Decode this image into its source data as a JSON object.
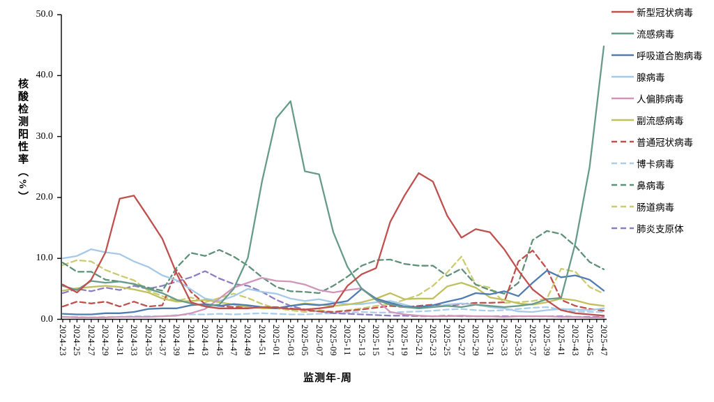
{
  "figure": {
    "y_axis": {
      "title": "核酸检测阳性率（%）",
      "tick_labels": [
        "0.0",
        "10.0",
        "20.0",
        "30.0",
        "40.0",
        "50.0"
      ]
    },
    "x_axis": {
      "title": "监测年-周"
    }
  },
  "chart_data": {
    "type": "line",
    "title": "",
    "xlabel": "监测年-周",
    "ylabel": "核酸检测阳性率（%）",
    "ylim": [
      0,
      50
    ],
    "y_ticks": [
      0,
      10,
      20,
      30,
      40,
      50
    ],
    "grid": false,
    "legend_position": "right",
    "categories": [
      "2024-23",
      "2024-25",
      "2024-27",
      "2024-29",
      "2024-31",
      "2024-33",
      "2024-35",
      "2024-37",
      "2024-39",
      "2024-41",
      "2024-43",
      "2024-45",
      "2024-47",
      "2024-49",
      "2024-51",
      "2025-01",
      "2025-03",
      "2025-05",
      "2025-07",
      "2025-09",
      "2025-11",
      "2025-13",
      "2025-15",
      "2025-17",
      "2025-19",
      "2025-21",
      "2025-23",
      "2025-25",
      "2025-27",
      "2025-29",
      "2025-31",
      "2025-33",
      "2025-35",
      "2025-37",
      "2025-39",
      "2025-41",
      "2025-43",
      "2025-45",
      "2025-47"
    ],
    "series": [
      {
        "name": "新型冠状病毒",
        "color": "#c0504d",
        "dash": false,
        "values": [
          5.7,
          4.4,
          6.5,
          11.0,
          19.8,
          20.3,
          16.8,
          13.2,
          7.5,
          2.8,
          2.1,
          1.8,
          1.8,
          1.8,
          2.0,
          1.9,
          1.7,
          1.6,
          1.8,
          2.1,
          5.5,
          7.4,
          8.4,
          16.0,
          20.3,
          24.0,
          22.6,
          17.0,
          13.4,
          14.8,
          14.3,
          11.5,
          8.0,
          4.9,
          3.1,
          1.5,
          1.0,
          0.8,
          0.6
        ]
      },
      {
        "name": "流感病毒",
        "color": "#669b8a",
        "dash": false,
        "values": [
          5.5,
          4.8,
          6.3,
          6.0,
          6.2,
          5.8,
          5.0,
          4.3,
          3.2,
          2.6,
          2.2,
          2.4,
          5.0,
          10.1,
          22.7,
          33.0,
          35.8,
          24.3,
          23.8,
          14.3,
          8.6,
          5.0,
          3.2,
          2.4,
          2.0,
          1.8,
          2.0,
          2.2,
          2.0,
          2.4,
          2.2,
          2.0,
          2.2,
          2.5,
          3.3,
          3.5,
          12.5,
          25.0,
          44.8
        ]
      },
      {
        "name": "呼吸道合胞病毒",
        "color": "#4f7db3",
        "dash": false,
        "values": [
          0.9,
          0.8,
          0.8,
          1.0,
          1.0,
          1.2,
          1.7,
          1.8,
          1.8,
          2.3,
          2.5,
          2.2,
          2.5,
          2.3,
          2.0,
          1.8,
          2.2,
          2.5,
          2.3,
          2.6,
          3.0,
          5.0,
          3.4,
          2.7,
          2.1,
          2.0,
          2.3,
          2.9,
          3.4,
          4.3,
          4.1,
          4.6,
          3.8,
          6.0,
          8.0,
          6.9,
          7.2,
          6.5,
          4.7
        ]
      },
      {
        "name": "腺病毒",
        "color": "#a5c9e9",
        "dash": false,
        "values": [
          10.0,
          10.4,
          11.5,
          11.0,
          10.7,
          9.5,
          8.6,
          7.2,
          6.4,
          4.9,
          3.4,
          3.0,
          3.8,
          5.0,
          4.5,
          4.2,
          3.4,
          3.0,
          3.3,
          2.8,
          2.5,
          2.5,
          2.8,
          3.0,
          2.4,
          1.8,
          2.0,
          2.4,
          2.6,
          2.4,
          2.0,
          1.8,
          1.3,
          1.2,
          1.5,
          1.7,
          1.6,
          1.5,
          1.8
        ]
      },
      {
        "name": "人偏肺病毒",
        "color": "#d195ba",
        "dash": false,
        "values": [
          0.4,
          0.3,
          0.3,
          0.3,
          0.4,
          0.4,
          0.4,
          0.5,
          0.6,
          1.0,
          1.7,
          3.4,
          5.2,
          6.0,
          6.8,
          6.3,
          6.2,
          5.7,
          4.8,
          4.4,
          4.8,
          5.1,
          3.2,
          1.2,
          0.8,
          0.6,
          0.5,
          0.5,
          0.6,
          0.5,
          0.5,
          0.4,
          0.5,
          0.5,
          0.5,
          0.4,
          0.4,
          0.3,
          0.3
        ]
      },
      {
        "name": "副流感病毒",
        "color": "#c0c05e",
        "dash": false,
        "values": [
          4.7,
          5.1,
          5.3,
          5.5,
          5.3,
          4.9,
          4.4,
          3.4,
          2.9,
          3.0,
          3.2,
          2.8,
          2.4,
          2.0,
          1.8,
          1.8,
          2.2,
          2.6,
          2.4,
          2.2,
          2.4,
          2.8,
          3.4,
          4.3,
          3.3,
          3.4,
          3.4,
          5.4,
          6.0,
          5.2,
          3.6,
          3.2,
          2.6,
          2.4,
          2.8,
          3.4,
          3.1,
          2.5,
          2.2
        ]
      },
      {
        "name": "普通冠状病毒",
        "color": "#c0504d",
        "dash": true,
        "values": [
          2.1,
          2.9,
          2.6,
          2.9,
          2.1,
          2.9,
          2.1,
          2.3,
          8.1,
          4.5,
          2.5,
          2.2,
          2.0,
          2.1,
          2.0,
          2.0,
          1.8,
          1.5,
          1.3,
          1.2,
          1.4,
          1.6,
          1.9,
          2.2,
          2.0,
          2.2,
          2.4,
          2.2,
          2.5,
          2.7,
          2.7,
          2.8,
          9.5,
          11.3,
          8.3,
          3.2,
          2.2,
          1.7,
          1.4
        ]
      },
      {
        "name": "博卡病毒",
        "color": "#aacdea",
        "dash": true,
        "values": [
          0.4,
          0.4,
          0.3,
          0.4,
          0.4,
          0.5,
          0.5,
          0.5,
          0.7,
          0.8,
          0.8,
          0.9,
          0.8,
          0.9,
          1.0,
          0.9,
          0.8,
          0.8,
          0.9,
          1.0,
          1.1,
          1.2,
          1.1,
          1.1,
          1.2,
          1.3,
          1.4,
          1.6,
          1.7,
          1.5,
          1.4,
          1.5,
          1.7,
          1.9,
          2.0,
          1.6,
          1.3,
          1.2,
          1.2
        ]
      },
      {
        "name": "鼻病毒",
        "color": "#5e9177",
        "dash": true,
        "values": [
          9.3,
          7.8,
          7.8,
          6.5,
          6.2,
          5.8,
          5.2,
          4.7,
          8.5,
          10.9,
          10.4,
          11.4,
          10.3,
          8.8,
          6.9,
          5.3,
          4.6,
          4.5,
          4.3,
          5.5,
          7.0,
          8.8,
          9.7,
          9.8,
          9.1,
          8.8,
          8.8,
          7.1,
          8.3,
          5.7,
          4.8,
          4.2,
          6.0,
          13.0,
          14.5,
          14.0,
          12.0,
          9.4,
          8.2
        ]
      },
      {
        "name": "肠道病毒",
        "color": "#cbcb72",
        "dash": true,
        "values": [
          8.9,
          9.7,
          9.5,
          8.1,
          7.2,
          6.4,
          4.7,
          3.8,
          3.0,
          3.6,
          2.8,
          3.5,
          4.2,
          3.5,
          2.5,
          1.8,
          1.5,
          1.2,
          1.5,
          1.2,
          1.5,
          1.8,
          2.2,
          2.5,
          3.2,
          4.0,
          5.5,
          7.7,
          10.3,
          5.7,
          5.2,
          2.7,
          2.8,
          3.0,
          3.4,
          8.3,
          7.8,
          5.3,
          4.2
        ]
      },
      {
        "name": "肺炎支原体",
        "color": "#8f7dc1",
        "dash": true,
        "values": [
          4.3,
          5.0,
          4.6,
          5.2,
          4.8,
          5.5,
          5.0,
          5.5,
          6.2,
          6.9,
          7.9,
          6.7,
          5.8,
          5.5,
          4.5,
          3.2,
          2.2,
          1.6,
          1.3,
          1.0,
          0.9,
          0.8,
          0.7,
          0.6,
          0.6,
          0.5,
          0.5,
          0.6,
          0.5,
          0.5,
          0.5,
          0.5,
          0.5,
          0.5,
          0.5,
          0.5,
          0.4,
          0.4,
          0.4
        ]
      }
    ]
  }
}
